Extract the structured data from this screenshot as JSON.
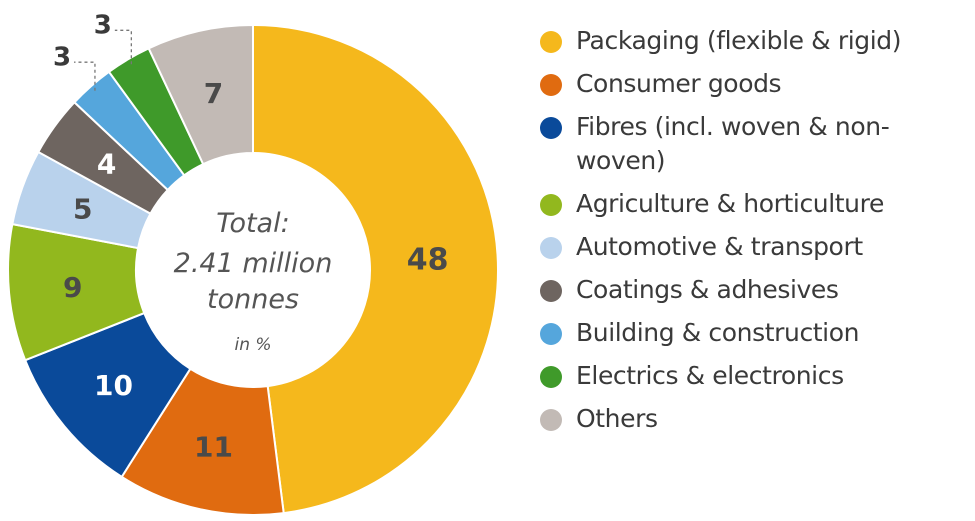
{
  "chart_data": {
    "type": "pie",
    "categories": [
      "Packaging (flexible & rigid)",
      "Consumer goods",
      "Fibres (incl. woven & non-woven)",
      "Agriculture & horticulture",
      "Automotive & transport",
      "Coatings & adhesives",
      "Building & construction",
      "Electrics & electronics",
      "Others"
    ],
    "values": [
      48,
      11,
      10,
      9,
      5,
      4,
      3,
      3,
      7
    ],
    "colors": [
      "#F5B81C",
      "#E06B10",
      "#0A4A9A",
      "#92B81E",
      "#B9D2EC",
      "#6E6560",
      "#55A6DC",
      "#3F9A2A",
      "#C2BAB5"
    ],
    "label_colors": [
      "#4a4a4a",
      "#4a4a4a",
      "#ffffff",
      "#4a4a4a",
      "#4a4a4a",
      "#ffffff",
      "#4a4a4a",
      "#4a4a4a",
      "#4a4a4a"
    ],
    "center": {
      "line1": "Total:",
      "line2": "2.41 million",
      "line3": "tonnes",
      "unit": "in %"
    },
    "legend_position": "right"
  }
}
